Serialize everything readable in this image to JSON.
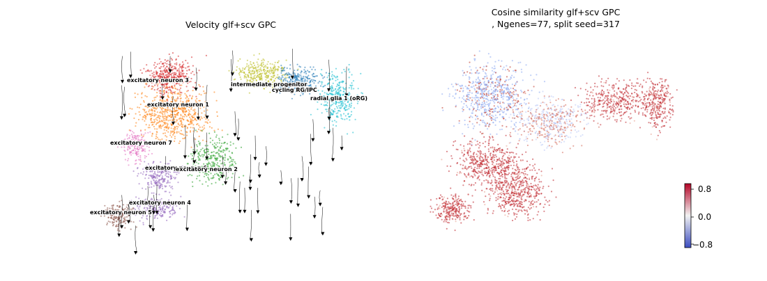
{
  "chart_data": [
    {
      "type": "scatter",
      "title": "Velocity glf+scv GPC",
      "grid": false,
      "legend": "none",
      "clusters": [
        {
          "name": "excitatory neuron 3",
          "color": "#d62728"
        },
        {
          "name": "excitatory neuron 1",
          "color": "#ff7f0e"
        },
        {
          "name": "intermediate progenitor",
          "color": "#bcbd22"
        },
        {
          "name": "cycling RG/IPC",
          "color": "#1f77b4"
        },
        {
          "name": "radial glia 1 (oRG)",
          "color": "#17becf"
        },
        {
          "name": "excitatory neuron 7",
          "color": "#e377c2"
        },
        {
          "name": "excitatory neuron 6",
          "color": "#9467bd"
        },
        {
          "name": "excitatory neuron 2",
          "color": "#2ca02c"
        },
        {
          "name": "excitatory neuron 4",
          "color": "#9467bd"
        },
        {
          "name": "excitatory neuron 5",
          "color": "#8c564b"
        }
      ],
      "streamlines": true
    },
    {
      "type": "scatter",
      "title_line1": "Cosine similarity glf+scv GPC",
      "title_line2": ", Ngenes=77, split seed=317",
      "grid": false,
      "colorbar": {
        "ticks": [
          "0.8",
          "0.0",
          "−0.8"
        ],
        "range": [
          -1,
          1
        ],
        "colors": [
          "#3b4cc0",
          "#f2f2f2",
          "#b40426"
        ]
      }
    }
  ]
}
